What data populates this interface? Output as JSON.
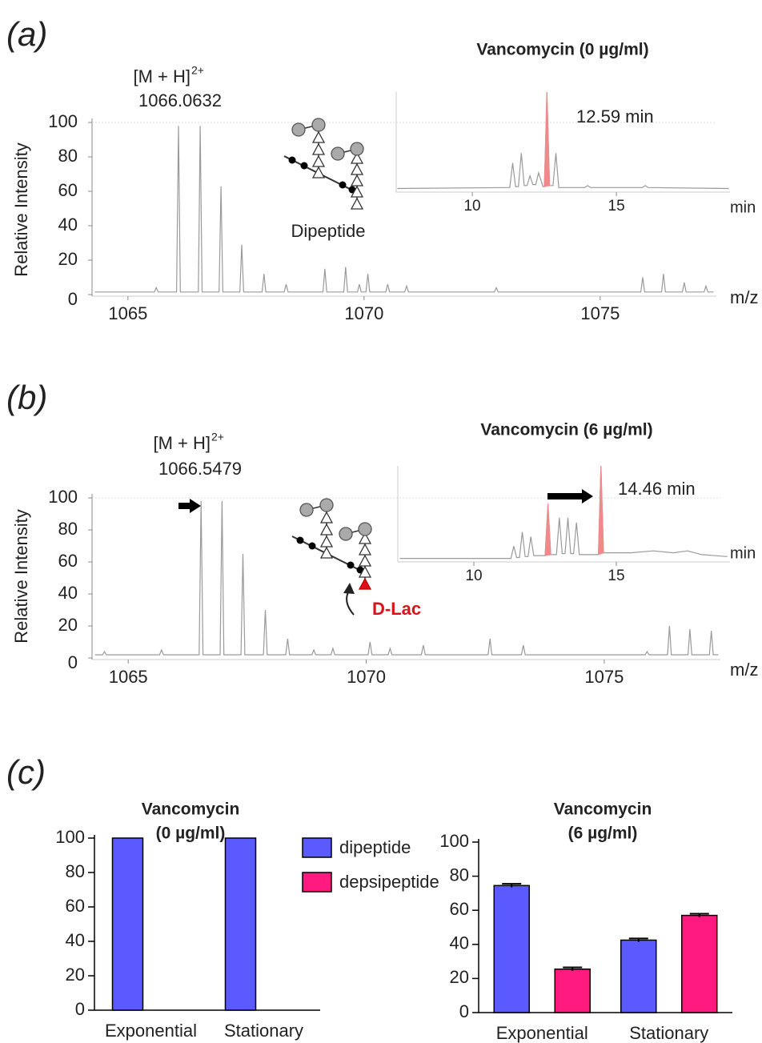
{
  "chart_data": [
    {
      "type": "line",
      "panel": "(a)",
      "ion_label": "[M + H]",
      "ion_charge": "2+",
      "ion_mz": "1066.0632",
      "structure_label": "Dipeptide",
      "ylabel": "Relative Intensity",
      "xlabel": "m/z",
      "xlim": [
        1064.24,
        1077.46
      ],
      "ylim": [
        0,
        100
      ],
      "xticks": [
        1065,
        1070,
        1075
      ],
      "yticks": [
        0,
        20,
        40,
        60,
        80,
        100
      ],
      "color": "#9a9a9a",
      "x": [
        1064.3,
        1065.56,
        1065.6,
        1065.64,
        1066.03,
        1066.07,
        1066.11,
        1066.49,
        1066.53,
        1066.57,
        1066.93,
        1066.97,
        1067.01,
        1067.37,
        1067.41,
        1067.45,
        1067.84,
        1067.88,
        1067.92,
        1068.31,
        1068.35,
        1068.39,
        1069.13,
        1069.17,
        1069.21,
        1069.57,
        1069.61,
        1069.65,
        1069.86,
        1069.9,
        1069.94,
        1070.04,
        1070.08,
        1070.12,
        1070.46,
        1070.5,
        1070.54,
        1070.86,
        1070.9,
        1070.94,
        1072.76,
        1072.8,
        1072.84,
        1075.86,
        1075.9,
        1075.94,
        1076.3,
        1076.34,
        1076.38,
        1076.74,
        1076.78,
        1076.82,
        1077.2,
        1077.24,
        1077.28,
        1077.4
      ],
      "values": [
        1.5,
        1.5,
        4,
        1.5,
        1.5,
        98,
        1.5,
        1.5,
        98,
        1.5,
        1.5,
        63,
        1.5,
        1.5,
        29,
        1.5,
        1.5,
        12,
        1.5,
        1.5,
        6,
        1.5,
        1.5,
        15,
        1.5,
        1.5,
        16,
        1.5,
        1.5,
        6,
        1.5,
        1.5,
        12,
        1.5,
        1.5,
        6,
        1.5,
        1.5,
        5,
        1.5,
        1.5,
        4,
        1.5,
        1.5,
        10,
        1.5,
        1.5,
        12,
        1.5,
        1.5,
        7,
        1.5,
        1.5,
        5,
        1.5,
        1.5
      ]
    },
    {
      "type": "line",
      "title": "Vancomycin (0 µg/ml)",
      "annotation": "12.59 min",
      "xlabel": "min",
      "xlim": [
        7.36,
        18.94
      ],
      "ylim": [
        0,
        100
      ],
      "xticks": [
        10,
        15
      ],
      "series": [
        {
          "color": "#9a9a9a",
          "x": [
            7.4,
            11.3,
            11.4,
            11.5,
            11.6,
            11.7,
            11.8,
            11.9,
            12.0,
            12.1,
            12.2,
            12.3,
            12.45,
            12.5,
            12.59,
            12.68,
            12.8,
            12.9,
            13.0,
            13.9,
            14,
            14.1,
            15.9,
            16,
            16.1,
            18.9
          ],
          "values": [
            2,
            3,
            28,
            4,
            4,
            38,
            5,
            5,
            15,
            6,
            6,
            18,
            4,
            4,
            100,
            5,
            5,
            38,
            3,
            3,
            5,
            3,
            3,
            5,
            3,
            2
          ]
        },
        {
          "color": "#f08a8a",
          "fill": true,
          "x": [
            12.5,
            12.59,
            12.68
          ],
          "values": [
            4,
            100,
            5
          ]
        }
      ]
    },
    {
      "type": "line",
      "panel": "(b)",
      "ion_label": "[M + H]",
      "ion_charge": "2+",
      "ion_mz": "1066.5479",
      "modification_label": "D-Lac",
      "ylabel": "Relative Intensity",
      "xlabel": "m/z",
      "xlim": [
        1064.24,
        1077.44
      ],
      "ylim": [
        0,
        100
      ],
      "xticks": [
        1065,
        1070,
        1075
      ],
      "yticks": [
        0,
        20,
        40,
        60,
        80,
        100
      ],
      "color": "#9a9a9a",
      "x": [
        1064.3,
        1064.46,
        1064.5,
        1064.54,
        1065.66,
        1065.7,
        1065.74,
        1066.49,
        1066.53,
        1066.57,
        1066.93,
        1066.97,
        1067.01,
        1067.37,
        1067.41,
        1067.45,
        1067.84,
        1067.88,
        1067.92,
        1068.31,
        1068.35,
        1068.39,
        1068.86,
        1068.9,
        1068.94,
        1069.26,
        1069.3,
        1069.34,
        1070.04,
        1070.08,
        1070.12,
        1070.46,
        1070.5,
        1070.54,
        1071.16,
        1071.2,
        1071.24,
        1072.56,
        1072.6,
        1072.64,
        1073.26,
        1073.3,
        1073.34,
        1075.86,
        1075.9,
        1075.94,
        1076.33,
        1076.37,
        1076.41,
        1076.76,
        1076.8,
        1076.84,
        1077.21,
        1077.25,
        1077.29,
        1077.4
      ],
      "values": [
        2,
        2,
        4,
        2,
        2,
        5,
        2,
        2,
        98,
        2,
        2,
        98,
        2,
        2,
        65,
        2,
        2,
        30,
        2,
        2,
        12,
        2,
        2,
        5,
        2,
        2,
        6,
        2,
        2,
        10,
        2,
        2,
        6,
        2,
        2,
        8,
        2,
        2,
        12,
        2,
        2,
        8,
        2,
        2,
        4,
        2,
        2,
        20,
        2,
        2,
        18,
        2,
        2,
        17,
        2,
        2
      ]
    },
    {
      "type": "line",
      "title": "Vancomycin (6 µg/ml)",
      "annotation": "14.46 min",
      "xlabel": "min",
      "xlim": [
        7.33,
        18.99
      ],
      "ylim": [
        0,
        100
      ],
      "xticks": [
        10,
        15
      ],
      "series": [
        {
          "color": "#9a9a9a",
          "x": [
            7.4,
            11.3,
            11.4,
            11.5,
            11.6,
            11.7,
            11.8,
            11.9,
            12.0,
            12.1,
            12.5,
            12.6,
            12.7,
            12.9,
            13.0,
            13.1,
            13.2,
            13.3,
            13.4,
            13.5,
            13.6,
            13.7,
            14.37,
            14.46,
            14.55,
            15.5,
            16.3,
            17.0,
            17.5,
            18.0,
            18.9
          ],
          "values": [
            2,
            2,
            15,
            3,
            3,
            30,
            4,
            4,
            25,
            5,
            5,
            60,
            6,
            6,
            45,
            7,
            7,
            45,
            7,
            7,
            40,
            6,
            6,
            100,
            8,
            8,
            10,
            8,
            10,
            6,
            4
          ]
        },
        {
          "color": "#f08a8a",
          "fill": true,
          "x": [
            12.5,
            12.6,
            12.7
          ],
          "values": [
            5,
            60,
            6
          ]
        },
        {
          "color": "#f08a8a",
          "fill": true,
          "x": [
            14.37,
            14.46,
            14.55
          ],
          "values": [
            6,
            100,
            8
          ]
        }
      ]
    },
    {
      "type": "bar",
      "panel": "(c)",
      "title": [
        "Vancomycin",
        "(0 µg/ml)"
      ],
      "categories": [
        "Exponential",
        "Stationary"
      ],
      "ylim": [
        0,
        100
      ],
      "yticks": [
        0,
        20,
        40,
        60,
        80,
        100
      ],
      "legend": "right",
      "series": [
        {
          "name": "dipeptide",
          "color": "#5a5aff",
          "values": [
            100,
            100
          ]
        },
        {
          "name": "depsipeptide",
          "color": "#ff1a80",
          "values": [
            0,
            0
          ]
        }
      ]
    },
    {
      "type": "bar",
      "title": [
        "Vancomycin",
        "(6 µg/ml)"
      ],
      "categories": [
        "Exponential",
        "Stationary"
      ],
      "ylim": [
        0,
        100
      ],
      "yticks": [
        0,
        20,
        40,
        60,
        80,
        100
      ],
      "series": [
        {
          "color": "#5a5aff",
          "values": [
            74.5,
            42.5
          ],
          "errors": [
            1,
            1
          ]
        },
        {
          "color": "#ff1a80",
          "values": [
            25.5,
            57
          ],
          "errors": [
            1,
            1
          ]
        }
      ]
    }
  ]
}
